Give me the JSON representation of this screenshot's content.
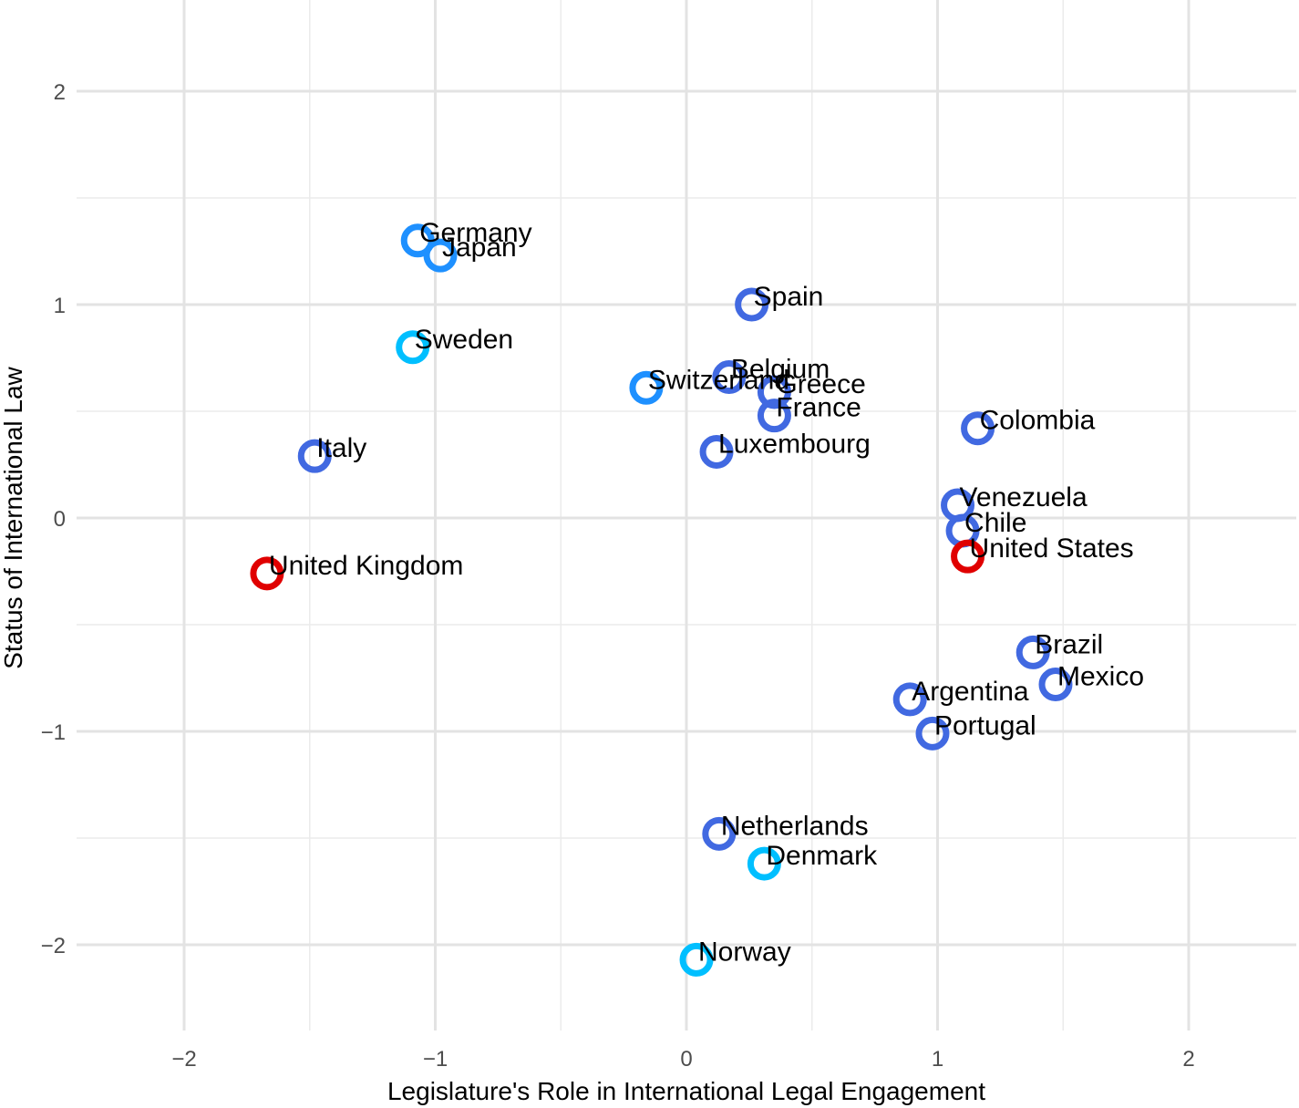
{
  "chart_data": {
    "type": "scatter",
    "title": "",
    "xlabel": "Legislature's Role in International Legal Engagement",
    "ylabel": "Status of International Law",
    "xlim": [
      -2.5,
      2.5
    ],
    "ylim": [
      -2.4,
      2.3
    ],
    "x_ticks": [
      -2,
      -1,
      0,
      1,
      2
    ],
    "y_ticks": [
      -2,
      -1,
      0,
      1,
      2
    ],
    "x_tick_labels": [
      "−2",
      "−1",
      "0",
      "1",
      "2"
    ],
    "y_tick_labels": [
      "−2",
      "−1",
      "0",
      "1",
      "2"
    ],
    "grid": true,
    "legend": "none",
    "marker": "hollow-circle",
    "points": [
      {
        "label": "Germany",
        "x": -1.07,
        "y": 1.3,
        "color": "#1e90ff"
      },
      {
        "label": "Japan",
        "x": -0.98,
        "y": 1.23,
        "color": "#1e90ff"
      },
      {
        "label": "Spain",
        "x": 0.26,
        "y": 1.0,
        "color": "#4169e1"
      },
      {
        "label": "Sweden",
        "x": -1.09,
        "y": 0.8,
        "color": "#00bfff"
      },
      {
        "label": "Switzerland",
        "x": -0.16,
        "y": 0.61,
        "color": "#1e90ff"
      },
      {
        "label": "Belgium",
        "x": 0.17,
        "y": 0.66,
        "color": "#4169e1"
      },
      {
        "label": "Greece",
        "x": 0.35,
        "y": 0.59,
        "color": "#4169e1"
      },
      {
        "label": "France",
        "x": 0.35,
        "y": 0.48,
        "color": "#4169e1"
      },
      {
        "label": "Luxembourg",
        "x": 0.12,
        "y": 0.31,
        "color": "#4169e1"
      },
      {
        "label": "Colombia",
        "x": 1.16,
        "y": 0.42,
        "color": "#4169e1"
      },
      {
        "label": "Italy",
        "x": -1.48,
        "y": 0.29,
        "color": "#4169e1"
      },
      {
        "label": "Venezuela",
        "x": 1.08,
        "y": 0.06,
        "color": "#4169e1"
      },
      {
        "label": "Chile",
        "x": 1.1,
        "y": -0.06,
        "color": "#4169e1"
      },
      {
        "label": "United States",
        "x": 1.12,
        "y": -0.18,
        "color": "#e00000"
      },
      {
        "label": "United Kingdom",
        "x": -1.67,
        "y": -0.26,
        "color": "#e00000"
      },
      {
        "label": "Brazil",
        "x": 1.38,
        "y": -0.63,
        "color": "#4169e1"
      },
      {
        "label": "Mexico",
        "x": 1.47,
        "y": -0.78,
        "color": "#4169e1"
      },
      {
        "label": "Argentina",
        "x": 0.89,
        "y": -0.85,
        "color": "#4169e1"
      },
      {
        "label": "Portugal",
        "x": 0.98,
        "y": -1.01,
        "color": "#4169e1"
      },
      {
        "label": "Netherlands",
        "x": 0.13,
        "y": -1.48,
        "color": "#4169e1"
      },
      {
        "label": "Denmark",
        "x": 0.31,
        "y": -1.62,
        "color": "#00bfff"
      },
      {
        "label": "Norway",
        "x": 0.04,
        "y": -2.07,
        "color": "#00bfff"
      }
    ]
  }
}
